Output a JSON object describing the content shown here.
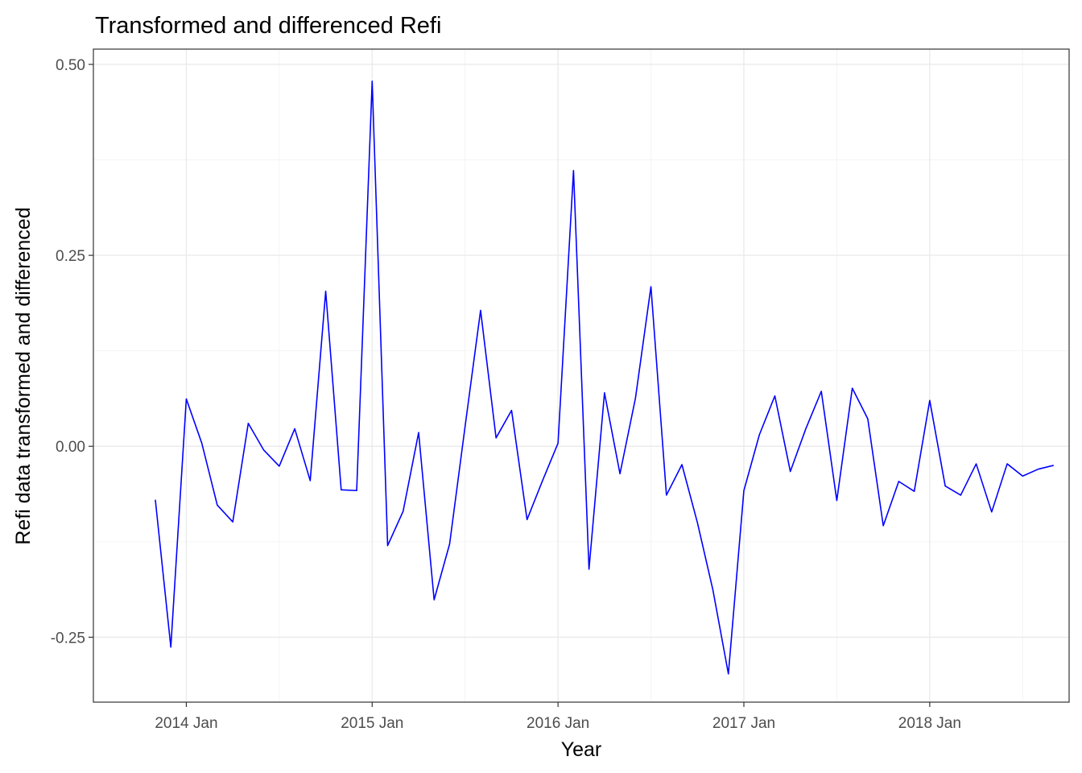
{
  "chart_data": {
    "type": "line",
    "title": "Transformed and differenced Refi",
    "xlabel": "Year",
    "ylabel": "Refi data transformed and differenced",
    "x_ticks": [
      {
        "date": "2014-01",
        "label": "2014 Jan"
      },
      {
        "date": "2015-01",
        "label": "2015 Jan"
      },
      {
        "date": "2016-01",
        "label": "2016 Jan"
      },
      {
        "date": "2017-01",
        "label": "2017 Jan"
      },
      {
        "date": "2018-01",
        "label": "2018 Jan"
      }
    ],
    "y_ticks": [
      {
        "value": -0.25,
        "label": "-0.25"
      },
      {
        "value": 0,
        "label": "0.00"
      },
      {
        "value": 0.25,
        "label": "0.25"
      },
      {
        "value": 0.5,
        "label": "0.50"
      }
    ],
    "xlim": [
      "2013-07",
      "2018-10"
    ],
    "ylim": [
      -0.335,
      0.52
    ],
    "grid": true,
    "series": [
      {
        "color": "#0000ff",
        "x": [
          "2013-11",
          "2013-12",
          "2014-01",
          "2014-02",
          "2014-03",
          "2014-04",
          "2014-05",
          "2014-06",
          "2014-07",
          "2014-08",
          "2014-09",
          "2014-10",
          "2014-11",
          "2014-12",
          "2015-01",
          "2015-02",
          "2015-03",
          "2015-04",
          "2015-05",
          "2015-06",
          "2015-07",
          "2015-08",
          "2015-09",
          "2015-10",
          "2015-11",
          "2015-12",
          "2016-01",
          "2016-02",
          "2016-03",
          "2016-04",
          "2016-05",
          "2016-06",
          "2016-07",
          "2016-08",
          "2016-09",
          "2016-10",
          "2016-11",
          "2016-12",
          "2017-01",
          "2017-02",
          "2017-03",
          "2017-04",
          "2017-05",
          "2017-06",
          "2017-07",
          "2017-08",
          "2017-09",
          "2017-10",
          "2017-11",
          "2017-12",
          "2018-01",
          "2018-02",
          "2018-03",
          "2018-04",
          "2018-05",
          "2018-06",
          "2018-07",
          "2018-08",
          "2018-09"
        ],
        "values": [
          -0.07,
          -0.263,
          0.062,
          0.004,
          -0.077,
          -0.099,
          0.03,
          -0.005,
          -0.026,
          0.023,
          -0.045,
          0.203,
          -0.057,
          -0.058,
          0.478,
          -0.13,
          -0.085,
          0.018,
          -0.201,
          -0.128,
          0.026,
          0.178,
          0.011,
          0.047,
          -0.096,
          -0.045,
          0.004,
          0.361,
          -0.161,
          0.07,
          -0.036,
          0.063,
          0.209,
          -0.064,
          -0.024,
          -0.1,
          -0.188,
          -0.298,
          -0.058,
          0.015,
          0.066,
          -0.033,
          0.023,
          0.072,
          -0.071,
          0.076,
          0.036,
          -0.104,
          -0.046,
          -0.059,
          0.06,
          -0.052,
          -0.064,
          -0.023,
          -0.086,
          -0.023,
          -0.039,
          -0.03,
          -0.025
        ]
      }
    ]
  }
}
